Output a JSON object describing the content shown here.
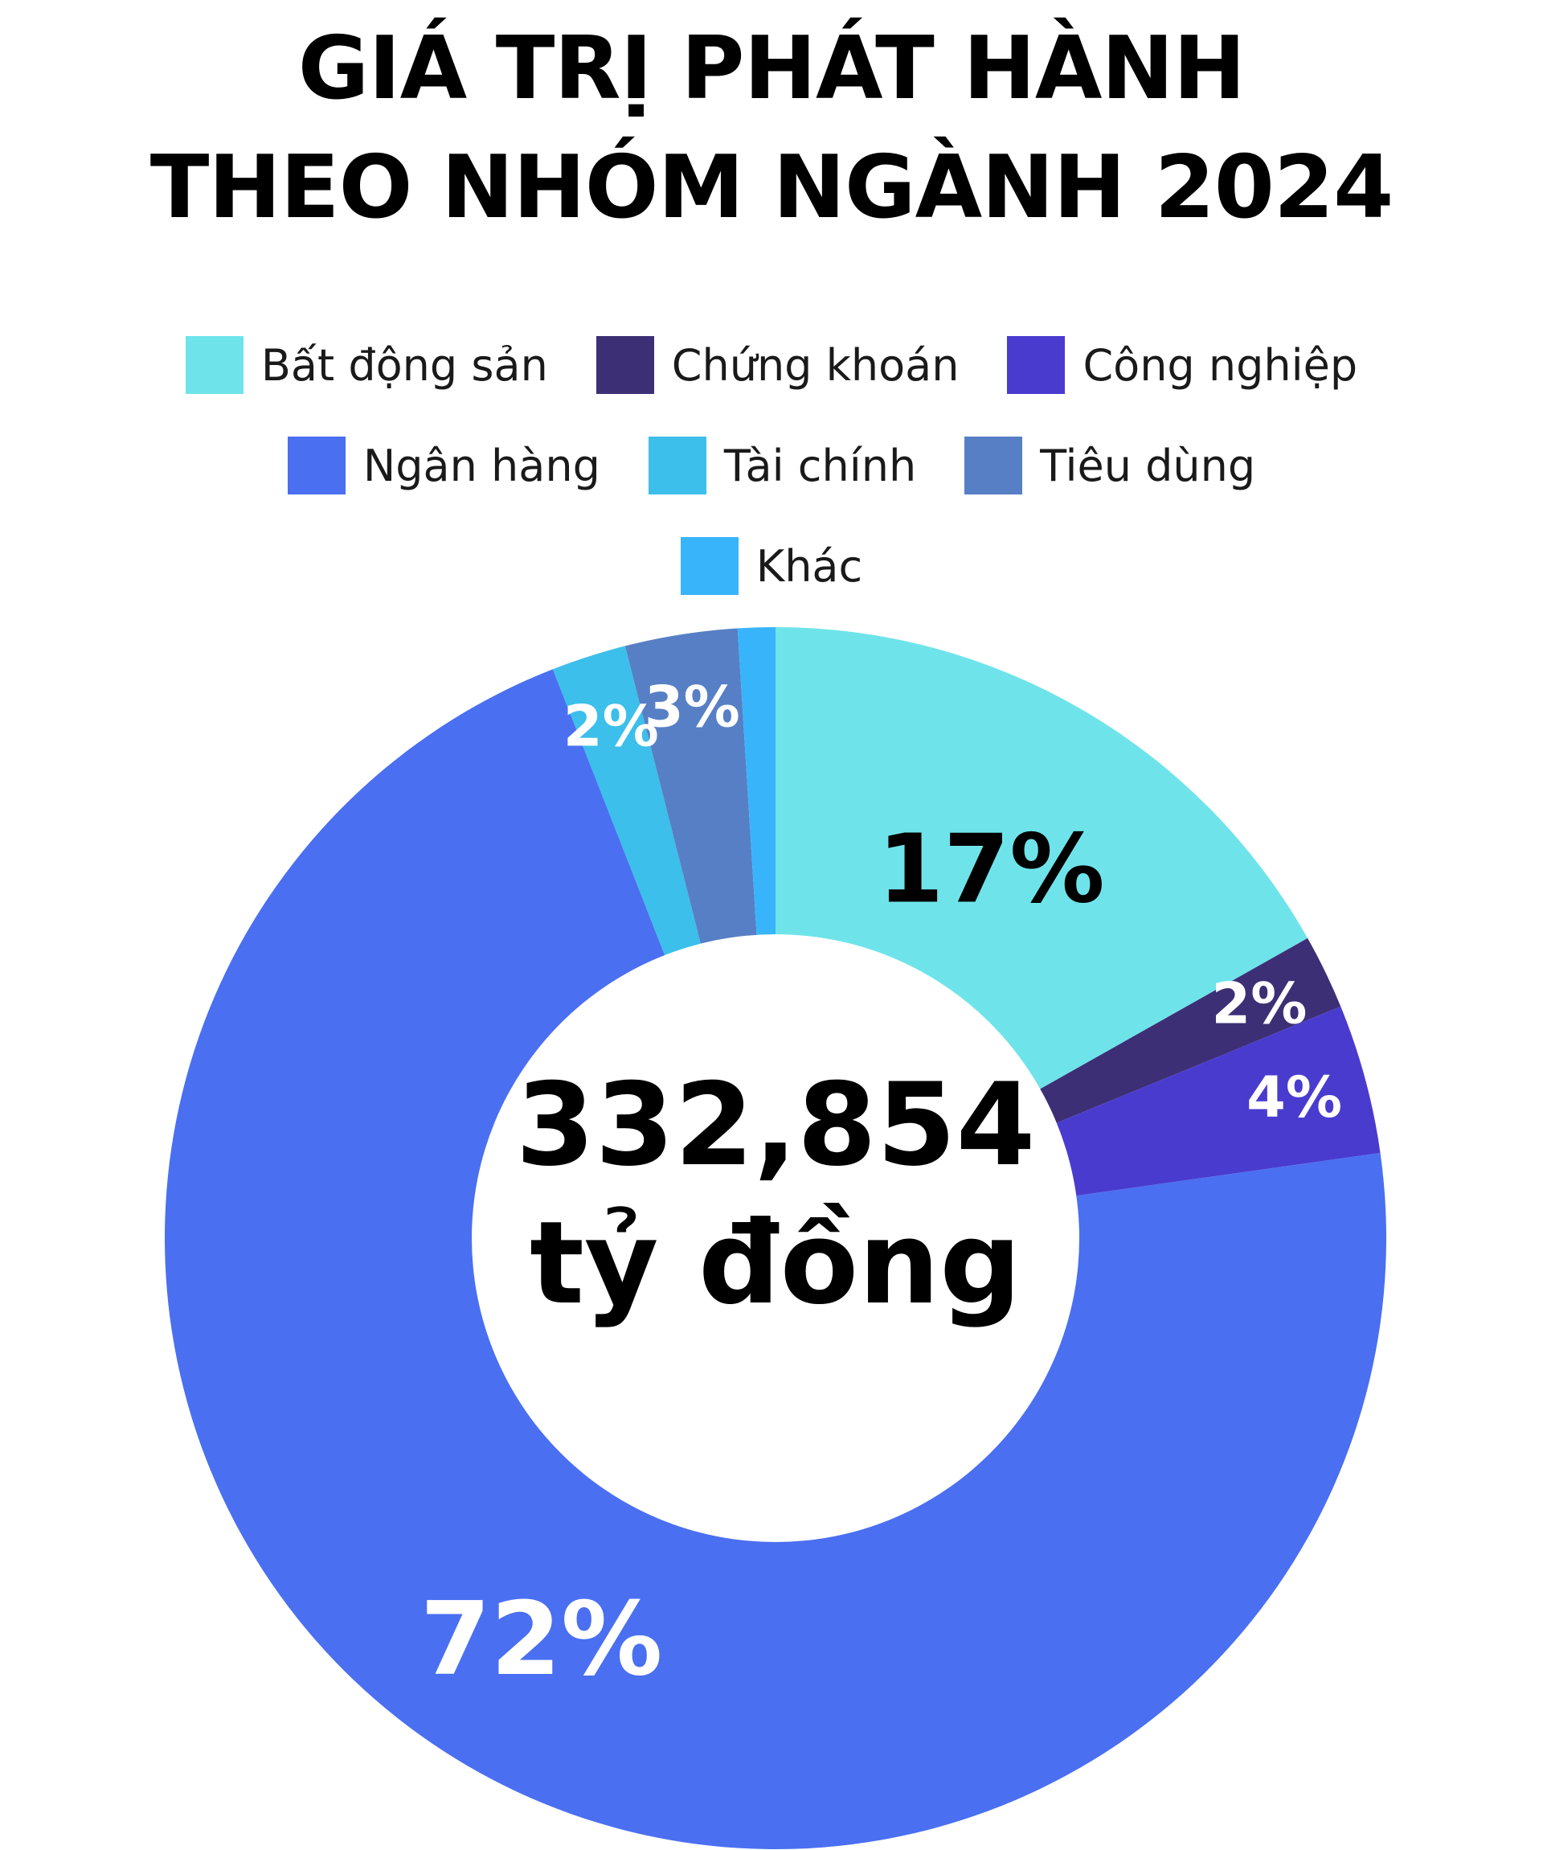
{
  "title_lines": [
    "GIÁ TRỊ PHÁT HÀNH",
    "THEO NHÓM NGÀNH 2024"
  ],
  "center": {
    "value": "332,854",
    "unit": "tỷ đồng"
  },
  "chart_data": {
    "type": "pie",
    "variant": "donut",
    "title": "GIÁ TRỊ PHÁT HÀNH THEO NHÓM NGÀNH 2024",
    "total": 332854,
    "total_unit": "tỷ đồng",
    "legend_position": "top",
    "slices": [
      {
        "name": "Bất động sản",
        "value": 17,
        "label": "17%",
        "color": "#6ee4ea",
        "label_color": "#000000"
      },
      {
        "name": "Chứng khoán",
        "value": 2,
        "label": "2%",
        "color": "#3d2f75",
        "label_color": "#ffffff"
      },
      {
        "name": "Công nghiệp",
        "value": 4,
        "label": "4%",
        "color": "#4a3bcf",
        "label_color": "#ffffff"
      },
      {
        "name": "Ngân hàng",
        "value": 72,
        "label": "72%",
        "color": "#4a6ff1",
        "label_color": "#ffffff"
      },
      {
        "name": "Tài chính",
        "value": 2,
        "label": "2%",
        "color": "#3cbfea",
        "label_color": "#ffffff"
      },
      {
        "name": "Tiêu dùng",
        "value": 3,
        "label": "3%",
        "color": "#577fc5",
        "label_color": "#ffffff"
      },
      {
        "name": "Khác",
        "value": 1,
        "label": "",
        "color": "#38b4fb",
        "label_color": "#ffffff"
      }
    ]
  }
}
